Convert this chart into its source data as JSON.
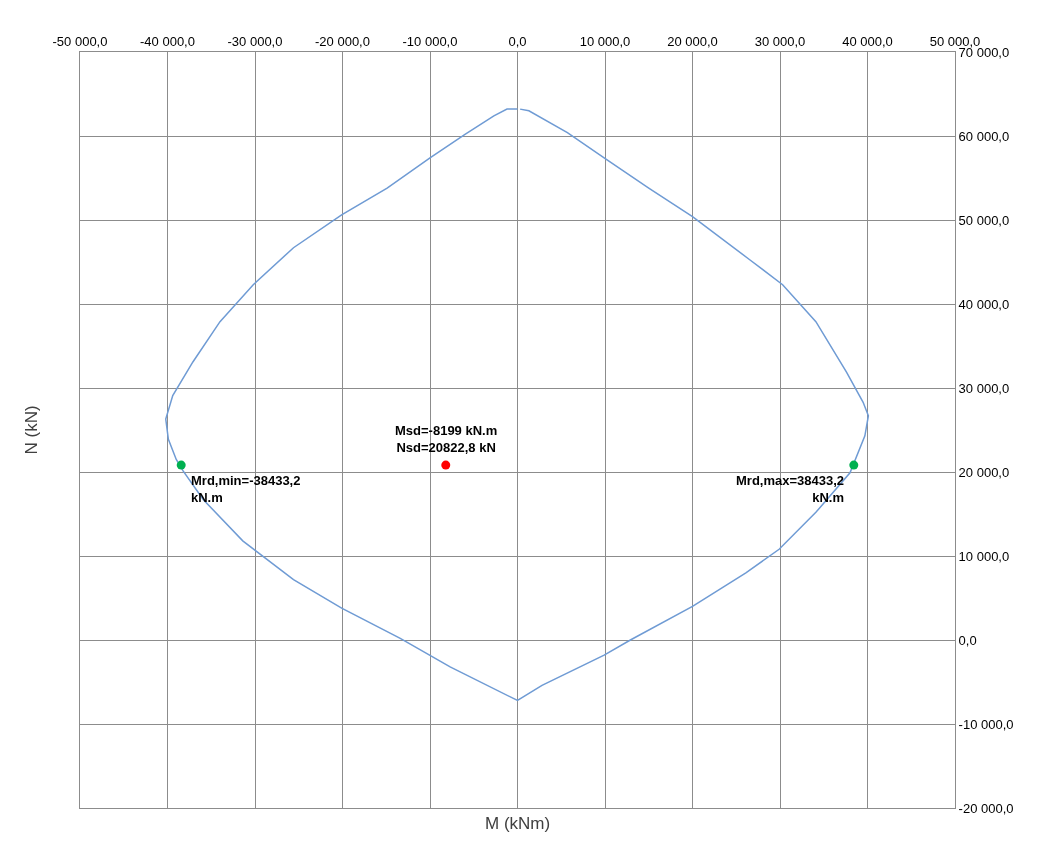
{
  "chart_data": {
    "type": "line",
    "xlabel": "M (kNm)",
    "ylabel": "N (kN)",
    "xlim": [
      -50000,
      50000
    ],
    "ylim": [
      -20000,
      70000
    ],
    "xticks": [
      {
        "value": -50000,
        "label": "-50 000,0"
      },
      {
        "value": -40000,
        "label": "-40 000,0"
      },
      {
        "value": -30000,
        "label": "-30 000,0"
      },
      {
        "value": -20000,
        "label": "-20 000,0"
      },
      {
        "value": -10000,
        "label": "-10 000,0"
      },
      {
        "value": 0,
        "label": "0,0"
      },
      {
        "value": 10000,
        "label": "10 000,0"
      },
      {
        "value": 20000,
        "label": "20 000,0"
      },
      {
        "value": 30000,
        "label": "30 000,0"
      },
      {
        "value": 40000,
        "label": "40 000,0"
      },
      {
        "value": 50000,
        "label": "50 000,0"
      }
    ],
    "yticks": [
      {
        "value": -20000,
        "label": "-20 000,0"
      },
      {
        "value": -10000,
        "label": "-10 000,0"
      },
      {
        "value": 0,
        "label": "0,0"
      },
      {
        "value": 10000,
        "label": "10 000,0"
      },
      {
        "value": 20000,
        "label": "20 000,0"
      },
      {
        "value": 30000,
        "label": "30 000,0"
      },
      {
        "value": 40000,
        "label": "40 000,0"
      },
      {
        "value": 50000,
        "label": "50 000,0"
      },
      {
        "value": 60000,
        "label": "60 000,0"
      },
      {
        "value": 70000,
        "label": "70 000,0"
      }
    ],
    "grid": true,
    "series": [
      {
        "color": "#6f9bd4",
        "marker": "none",
        "line_style": "solid",
        "x": [
          0,
          -1200,
          -2700,
          -6000,
          -10000,
          -14900,
          -20100,
          -25600,
          -30200,
          -34000,
          -37100,
          -39400,
          -40200,
          -39900,
          -39000,
          -38200,
          -35900,
          -31400,
          -25600,
          -20100,
          -13400,
          -7700,
          0,
          2800,
          9900,
          12900,
          20000,
          26100,
          29900,
          34100,
          38000,
          39700,
          40100,
          39500,
          37600,
          34100,
          30300,
          26500,
          20000,
          15000,
          9900,
          5700,
          1300,
          300
        ],
        "values": [
          63200,
          63200,
          62400,
          60200,
          57400,
          53800,
          50600,
          46700,
          42300,
          37900,
          33100,
          29100,
          26300,
          23900,
          21500,
          20100,
          16700,
          11800,
          7200,
          3800,
          200,
          -3200,
          -7200,
          -5400,
          -1800,
          0,
          4000,
          8000,
          10800,
          15200,
          19900,
          24300,
          26700,
          28300,
          31900,
          37900,
          42300,
          45300,
          50400,
          53800,
          57400,
          60400,
          63000,
          63200
        ]
      },
      {
        "type": "scatter",
        "color": "#ff0000",
        "marker": "circle",
        "x": [
          -8199
        ],
        "values": [
          20822.8
        ]
      },
      {
        "type": "scatter",
        "color": "#00b050",
        "marker": "circle",
        "x": [
          -38433.2,
          38433.2
        ],
        "values": [
          20822.8,
          20822.8
        ]
      }
    ],
    "annotations": [
      {
        "text": "Msd=-8199 kN.m\nNsd=20822,8 kN",
        "x": -8199,
        "y": 20822.8
      },
      {
        "text": "Mrd,min=-38433,2\nkN.m",
        "x": -38433.2,
        "y": 20822.8
      },
      {
        "text": "Mrd,max=38433,2\nkN.m",
        "x": 38433.2,
        "y": 20822.8
      }
    ]
  }
}
